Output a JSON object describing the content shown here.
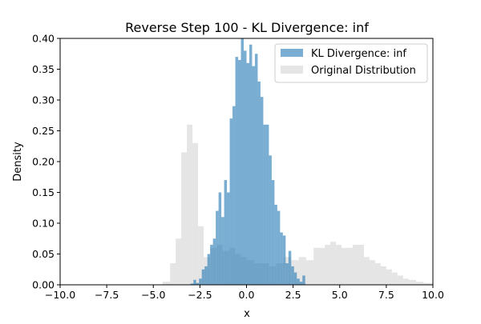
{
  "chart_data": {
    "type": "bar",
    "title": "Reverse Step 100 - KL Divergence: inf",
    "xlabel": "x",
    "ylabel": "Density",
    "xlim": [
      -10.0,
      10.0
    ],
    "ylim": [
      0.0,
      0.4
    ],
    "x_ticks": [
      "−10.0",
      "−7.5",
      "−5.0",
      "−2.5",
      "0.0",
      "2.5",
      "5.0",
      "7.5",
      "10.0"
    ],
    "y_ticks": [
      "0.00",
      "0.05",
      "0.10",
      "0.15",
      "0.20",
      "0.25",
      "0.30",
      "0.35",
      "0.40"
    ],
    "grid": false,
    "legend_position": "top-right",
    "series": [
      {
        "name": "Original Distribution",
        "color": "#d3d3d3",
        "opacity": 0.6,
        "bins": [
          [
            -4.5,
            -4.1,
            0.005
          ],
          [
            -4.1,
            -3.8,
            0.035
          ],
          [
            -3.8,
            -3.5,
            0.075
          ],
          [
            -3.5,
            -3.2,
            0.215
          ],
          [
            -3.2,
            -2.9,
            0.26
          ],
          [
            -2.9,
            -2.6,
            0.23
          ],
          [
            -2.6,
            -2.3,
            0.095
          ],
          [
            -2.3,
            -1.95,
            0.045
          ],
          [
            -1.95,
            -1.6,
            0.06
          ],
          [
            -1.6,
            -1.3,
            0.065
          ],
          [
            -1.3,
            -0.9,
            0.055
          ],
          [
            -0.9,
            -0.6,
            0.06
          ],
          [
            -0.6,
            -0.3,
            0.05
          ],
          [
            -0.3,
            0.0,
            0.045
          ],
          [
            0.0,
            0.4,
            0.04
          ],
          [
            0.4,
            0.8,
            0.035
          ],
          [
            0.8,
            1.2,
            0.035
          ],
          [
            1.2,
            1.6,
            0.03
          ],
          [
            1.6,
            2.0,
            0.035
          ],
          [
            2.0,
            2.4,
            0.045
          ],
          [
            2.4,
            2.8,
            0.04
          ],
          [
            2.8,
            3.2,
            0.045
          ],
          [
            3.2,
            3.6,
            0.04
          ],
          [
            3.6,
            3.9,
            0.06
          ],
          [
            3.9,
            4.2,
            0.06
          ],
          [
            4.2,
            4.5,
            0.065
          ],
          [
            4.5,
            4.8,
            0.07
          ],
          [
            4.8,
            5.1,
            0.065
          ],
          [
            5.1,
            5.4,
            0.06
          ],
          [
            5.4,
            5.7,
            0.06
          ],
          [
            5.7,
            6.0,
            0.065
          ],
          [
            6.0,
            6.3,
            0.065
          ],
          [
            6.3,
            6.6,
            0.045
          ],
          [
            6.6,
            6.9,
            0.04
          ],
          [
            6.9,
            7.2,
            0.035
          ],
          [
            7.2,
            7.5,
            0.03
          ],
          [
            7.5,
            7.8,
            0.025
          ],
          [
            7.8,
            8.1,
            0.02
          ],
          [
            8.1,
            8.4,
            0.015
          ],
          [
            8.4,
            8.7,
            0.01
          ],
          [
            8.7,
            9.1,
            0.008
          ],
          [
            9.1,
            9.5,
            0.005
          ],
          [
            9.5,
            10.0,
            0.003
          ]
        ]
      },
      {
        "name": "KL Divergence: inf",
        "color": "#1f77b4",
        "opacity": 0.6,
        "bins": [
          [
            -3.0,
            -2.85,
            0.002
          ],
          [
            -2.85,
            -2.7,
            0.008
          ],
          [
            -2.7,
            -2.55,
            0.003
          ],
          [
            -2.55,
            -2.4,
            0.01
          ],
          [
            -2.4,
            -2.25,
            0.025
          ],
          [
            -2.25,
            -2.1,
            0.03
          ],
          [
            -2.1,
            -1.95,
            0.05
          ],
          [
            -1.95,
            -1.8,
            0.065
          ],
          [
            -1.8,
            -1.65,
            0.075
          ],
          [
            -1.65,
            -1.5,
            0.12
          ],
          [
            -1.5,
            -1.35,
            0.15
          ],
          [
            -1.35,
            -1.2,
            0.11
          ],
          [
            -1.2,
            -1.05,
            0.17
          ],
          [
            -1.05,
            -0.9,
            0.15
          ],
          [
            -0.9,
            -0.75,
            0.27
          ],
          [
            -0.75,
            -0.6,
            0.29
          ],
          [
            -0.6,
            -0.45,
            0.37
          ],
          [
            -0.45,
            -0.3,
            0.365
          ],
          [
            -0.3,
            -0.15,
            0.42
          ],
          [
            -0.15,
            0.0,
            0.38
          ],
          [
            0.0,
            0.15,
            0.36
          ],
          [
            0.15,
            0.3,
            0.39
          ],
          [
            0.3,
            0.45,
            0.355
          ],
          [
            0.45,
            0.6,
            0.375
          ],
          [
            0.6,
            0.75,
            0.33
          ],
          [
            0.75,
            0.9,
            0.305
          ],
          [
            0.9,
            1.05,
            0.26
          ],
          [
            1.05,
            1.2,
            0.26
          ],
          [
            1.2,
            1.35,
            0.21
          ],
          [
            1.35,
            1.5,
            0.17
          ],
          [
            1.5,
            1.65,
            0.13
          ],
          [
            1.65,
            1.8,
            0.12
          ],
          [
            1.8,
            1.95,
            0.085
          ],
          [
            1.95,
            2.1,
            0.08
          ],
          [
            2.1,
            2.25,
            0.035
          ],
          [
            2.25,
            2.4,
            0.055
          ],
          [
            2.4,
            2.55,
            0.03
          ],
          [
            2.55,
            2.7,
            0.02
          ],
          [
            2.7,
            2.85,
            0.01
          ],
          [
            2.85,
            3.0,
            0.005
          ],
          [
            3.0,
            3.15,
            0.015
          ]
        ]
      }
    ]
  }
}
